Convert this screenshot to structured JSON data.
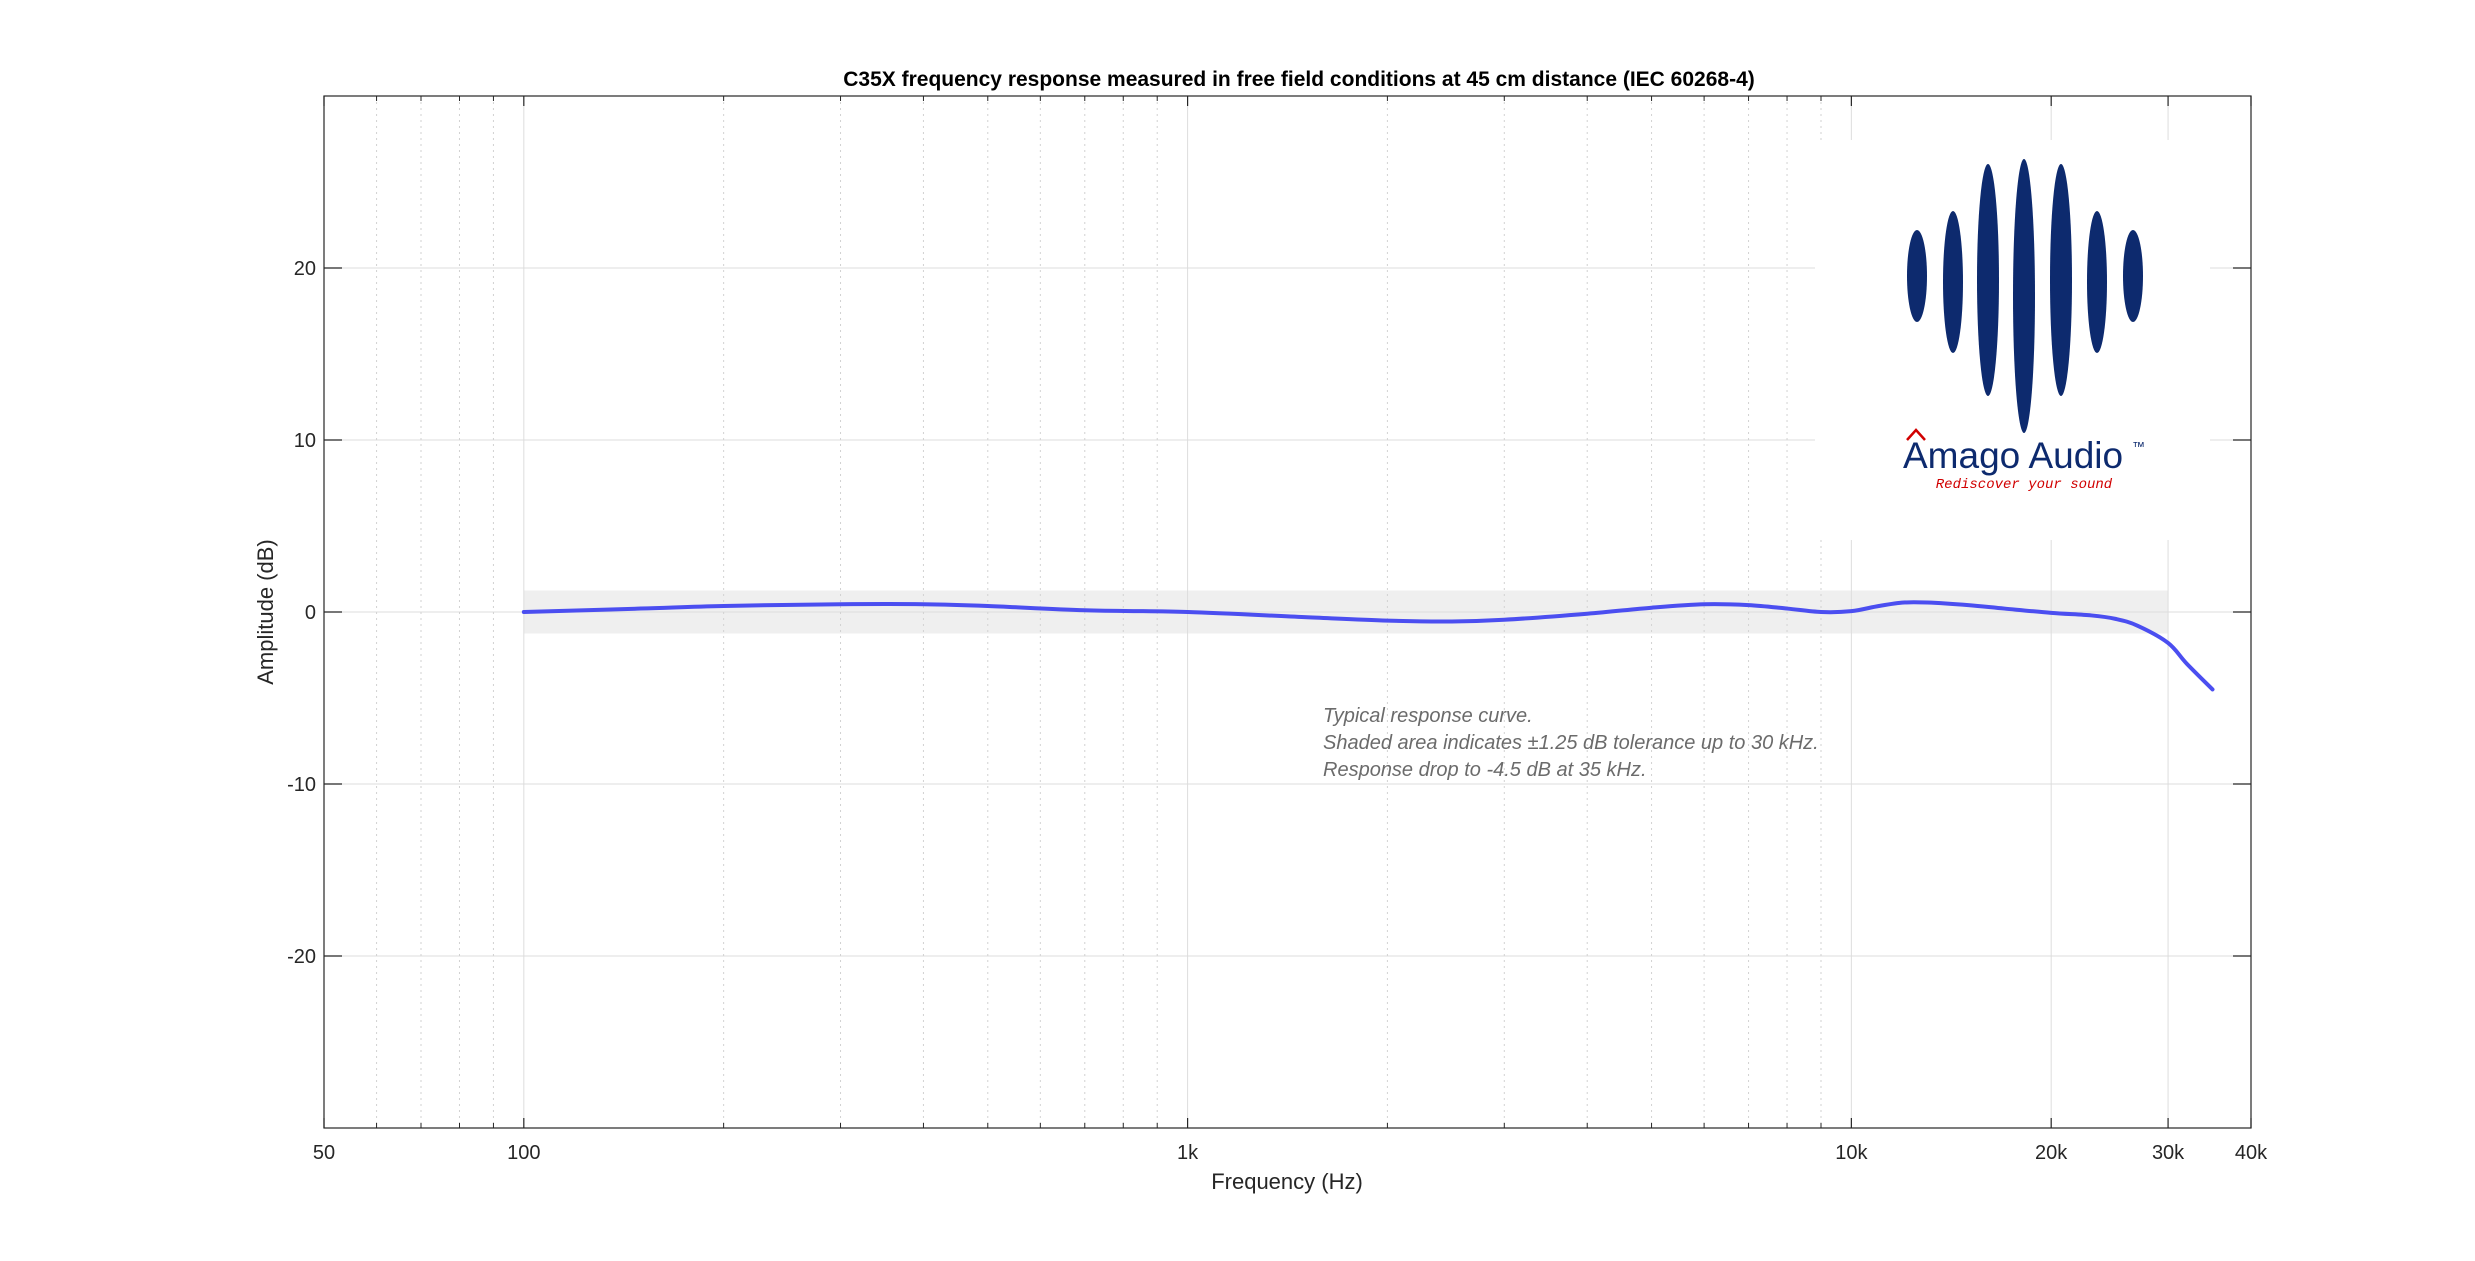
{
  "chart_data": {
    "type": "line",
    "title": "C35X frequency response measured in free field conditions at 45 cm distance (IEC 60268-4)",
    "xlabel": "Frequency (Hz)",
    "ylabel": "Amplitude (dB)",
    "x_scale": "log",
    "xlim": [
      50,
      40000
    ],
    "ylim": [
      -30,
      30
    ],
    "x_ticks": [
      50,
      100,
      1000,
      10000,
      20000,
      30000,
      40000
    ],
    "x_tick_labels": [
      "50",
      "100",
      "1k",
      "10k",
      "20k",
      "30k",
      "40k"
    ],
    "y_ticks": [
      -20,
      -10,
      0,
      10,
      20
    ],
    "y_tick_labels": [
      "-20",
      "-10",
      "0",
      "10",
      "20"
    ],
    "grid": true,
    "tolerance_band": {
      "x": [
        100,
        30000
      ],
      "y": [
        -1.25,
        1.25
      ],
      "color": "#efefef"
    },
    "series": [
      {
        "color": "#4b4ef0",
        "x": [
          100,
          150,
          200,
          300,
          400,
          500,
          700,
          1000,
          1500,
          2000,
          2500,
          3000,
          4000,
          5000,
          6000,
          7000,
          8000,
          9000,
          10000,
          11000,
          12000,
          13000,
          15000,
          17000,
          20000,
          23000,
          25000,
          27000,
          30000,
          32000,
          35000
        ],
        "y": [
          0.0,
          0.2,
          0.35,
          0.45,
          0.45,
          0.35,
          0.1,
          0.0,
          -0.3,
          -0.5,
          -0.55,
          -0.45,
          -0.1,
          0.25,
          0.45,
          0.4,
          0.2,
          0.0,
          0.05,
          0.35,
          0.55,
          0.55,
          0.4,
          0.2,
          -0.05,
          -0.2,
          -0.4,
          -0.8,
          -1.8,
          -3.0,
          -4.5
        ]
      }
    ],
    "annotations": [
      "Typical response curve.",
      "Shaded area indicates ±1.25 dB tolerance up to 30 kHz.",
      "Response drop to -4.5 dB at 35 kHz."
    ]
  },
  "logo": {
    "brand": "Amago Audio",
    "trademark": "™",
    "tagline": "Rediscover your sound",
    "colors": {
      "waves": "#0d2a6e",
      "accent": "#d10000"
    }
  }
}
